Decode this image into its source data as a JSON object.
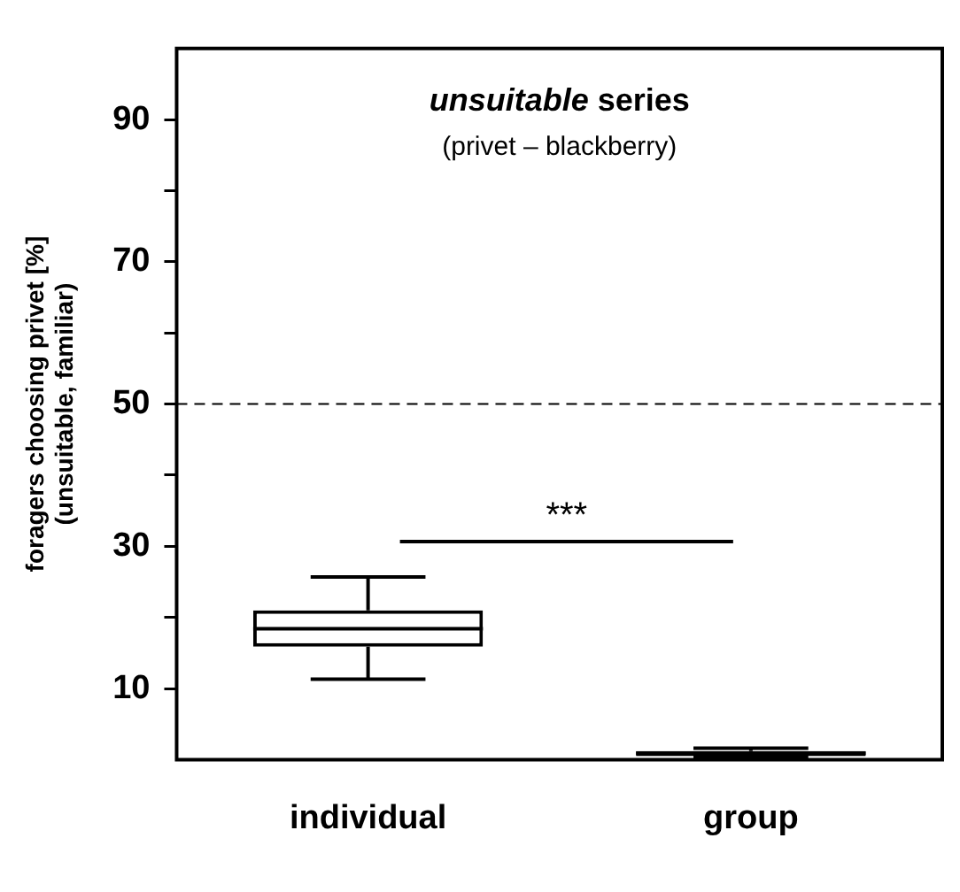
{
  "chart_data": {
    "type": "box",
    "title": "unsuitable series",
    "subtitle": "(privet – blackberry)",
    "ylabel": "foragers choosing privet [%]\n(unsuitable, familiar)",
    "categories": [
      "individual",
      "group"
    ],
    "boxes": [
      {
        "low": 11.3,
        "q1": 15.9,
        "median": 18.4,
        "q3": 21.0,
        "high": 25.7
      },
      {
        "low": 0.3,
        "q1": 0.5,
        "median": 0.9,
        "q3": 1.2,
        "high": 1.6
      }
    ],
    "ylim": [
      0,
      100
    ],
    "yticks": [
      10,
      {
        "value": 20,
        "label": null
      },
      30,
      {
        "value": 40,
        "label": null
      },
      50,
      {
        "value": 60,
        "label": null
      },
      70,
      {
        "value": 80,
        "label": null
      },
      90
    ],
    "ref_lines": [
      {
        "axis": "y",
        "value": 50,
        "color": "#000000",
        "line_style": "dashed"
      }
    ],
    "annotations": [
      "***"
    ],
    "grid": false,
    "legend": false
  }
}
